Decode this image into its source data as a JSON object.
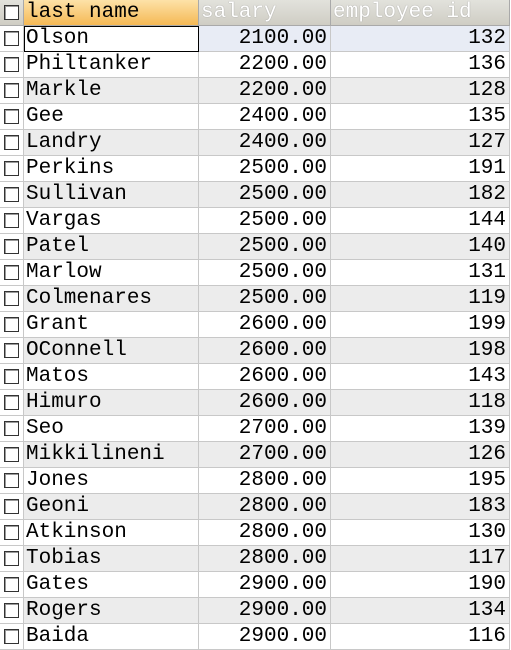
{
  "columns": {
    "last_name": "last name",
    "salary": "salary",
    "employee_id": "employee id"
  },
  "rows": [
    {
      "last_name": "Olson",
      "salary": "2100.00",
      "employee_id": "132"
    },
    {
      "last_name": "Philtanker",
      "salary": "2200.00",
      "employee_id": "136"
    },
    {
      "last_name": "Markle",
      "salary": "2200.00",
      "employee_id": "128"
    },
    {
      "last_name": "Gee",
      "salary": "2400.00",
      "employee_id": "135"
    },
    {
      "last_name": "Landry",
      "salary": "2400.00",
      "employee_id": "127"
    },
    {
      "last_name": "Perkins",
      "salary": "2500.00",
      "employee_id": "191"
    },
    {
      "last_name": "Sullivan",
      "salary": "2500.00",
      "employee_id": "182"
    },
    {
      "last_name": "Vargas",
      "salary": "2500.00",
      "employee_id": "144"
    },
    {
      "last_name": "Patel",
      "salary": "2500.00",
      "employee_id": "140"
    },
    {
      "last_name": "Marlow",
      "salary": "2500.00",
      "employee_id": "131"
    },
    {
      "last_name": "Colmenares",
      "salary": "2500.00",
      "employee_id": "119"
    },
    {
      "last_name": "Grant",
      "salary": "2600.00",
      "employee_id": "199"
    },
    {
      "last_name": "OConnell",
      "salary": "2600.00",
      "employee_id": "198"
    },
    {
      "last_name": "Matos",
      "salary": "2600.00",
      "employee_id": "143"
    },
    {
      "last_name": "Himuro",
      "salary": "2600.00",
      "employee_id": "118"
    },
    {
      "last_name": "Seo",
      "salary": "2700.00",
      "employee_id": "139"
    },
    {
      "last_name": "Mikkilineni",
      "salary": "2700.00",
      "employee_id": "126"
    },
    {
      "last_name": "Jones",
      "salary": "2800.00",
      "employee_id": "195"
    },
    {
      "last_name": "Geoni",
      "salary": "2800.00",
      "employee_id": "183"
    },
    {
      "last_name": "Atkinson",
      "salary": "2800.00",
      "employee_id": "130"
    },
    {
      "last_name": "Tobias",
      "salary": "2800.00",
      "employee_id": "117"
    },
    {
      "last_name": "Gates",
      "salary": "2900.00",
      "employee_id": "190"
    },
    {
      "last_name": "Rogers",
      "salary": "2900.00",
      "employee_id": "134"
    },
    {
      "last_name": "Baida",
      "salary": "2900.00",
      "employee_id": "116"
    }
  ]
}
